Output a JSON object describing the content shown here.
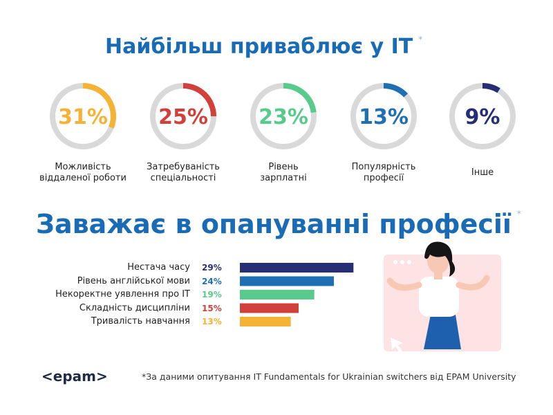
{
  "chart_data": [
    {
      "type": "donut",
      "title": "Найбільш приваблює у IT",
      "title_note": "*",
      "categories": [
        "Можливість\nвіддаленої роботи",
        "Затребуваність\nспеціальності",
        "Рівень\nзарплатні",
        "Популярність\nпрофесії",
        "Інше"
      ],
      "values": [
        31,
        25,
        23,
        13,
        9
      ],
      "value_labels": [
        "31%",
        "25%",
        "23%",
        "13%",
        "9%"
      ],
      "colors": [
        "#f5b335",
        "#d2403c",
        "#58cb8c",
        "#1f6fb5",
        "#262f73"
      ],
      "track_color": "#d9d9d9",
      "ylim": [
        0,
        100
      ]
    },
    {
      "type": "bar",
      "title": "Заважає в опануванні професії",
      "title_note": "*",
      "categories": [
        "Нестача часу",
        "Рівень англійської мови",
        "Некоректне уявлення про IT",
        "Складність дисципліни",
        "Тривалість навчання"
      ],
      "values": [
        29,
        24,
        19,
        15,
        13
      ],
      "value_labels": [
        "29%",
        "24%",
        "19%",
        "15%",
        "13%"
      ],
      "colors": [
        "#262f73",
        "#1f6fb5",
        "#58cb8c",
        "#d2403c",
        "#f5b335"
      ],
      "xlim": [
        0,
        30
      ]
    }
  ],
  "footer": {
    "logo": "<epam>",
    "note": "*За даними опитування IT Fundamentals for Ukrainian switchers від EPAM University"
  }
}
